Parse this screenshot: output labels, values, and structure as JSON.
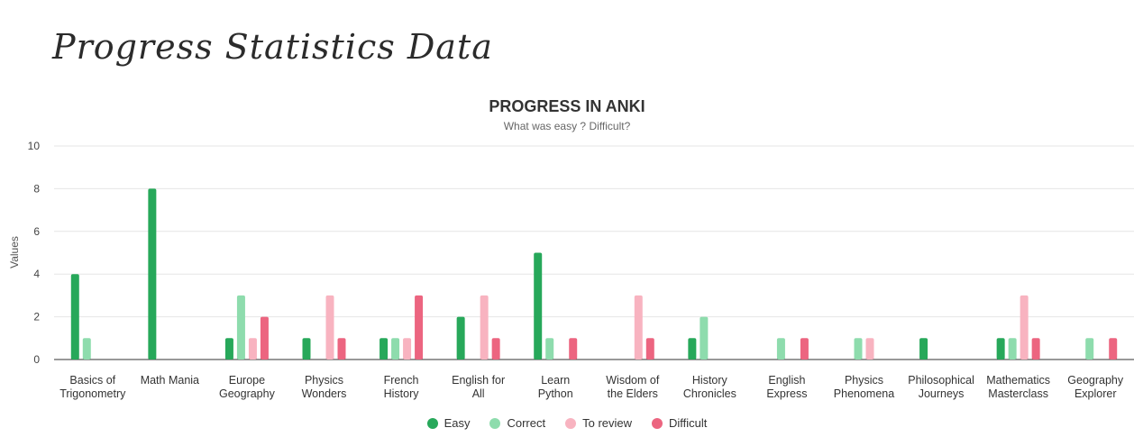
{
  "page": {
    "heading": "Progress Statistics Data"
  },
  "chart_data": {
    "type": "bar",
    "title": "PROGRESS IN ANKI",
    "subtitle": "What was easy ? Difficult?",
    "ylabel": "Values",
    "xlabel": "",
    "ylim": [
      0,
      10
    ],
    "yticks": [
      0,
      2,
      4,
      6,
      8,
      10
    ],
    "grid": true,
    "legend_position": "bottom",
    "categories": [
      [
        "Basics of",
        "Trigonometry"
      ],
      [
        "Math Mania"
      ],
      [
        "Europe",
        "Geography"
      ],
      [
        "Physics",
        "Wonders"
      ],
      [
        "French",
        "History"
      ],
      [
        "English for",
        "All"
      ],
      [
        "Learn",
        "Python"
      ],
      [
        "Wisdom of",
        "the Elders"
      ],
      [
        "History",
        "Chronicles"
      ],
      [
        "English",
        "Express"
      ],
      [
        "Physics",
        "Phenomena"
      ],
      [
        "Philosophical",
        "Journeys"
      ],
      [
        "Mathematics",
        "Masterclass"
      ],
      [
        "Geography",
        "Explorer"
      ]
    ],
    "series": [
      {
        "name": "Easy",
        "color": "#27a85a",
        "values": [
          4,
          8,
          1,
          1,
          1,
          2,
          5,
          0,
          1,
          0,
          0,
          1,
          1,
          0
        ]
      },
      {
        "name": "Correct",
        "color": "#8edcad",
        "values": [
          1,
          0,
          3,
          0,
          1,
          0,
          1,
          0,
          2,
          1,
          1,
          0,
          1,
          1
        ]
      },
      {
        "name": "To review",
        "color": "#f8b3c0",
        "values": [
          0,
          0,
          1,
          3,
          1,
          3,
          0,
          3,
          0,
          0,
          1,
          0,
          3,
          0
        ]
      },
      {
        "name": "Difficult",
        "color": "#ec6580",
        "values": [
          0,
          0,
          2,
          1,
          3,
          1,
          1,
          1,
          0,
          1,
          0,
          0,
          1,
          1
        ]
      }
    ]
  }
}
